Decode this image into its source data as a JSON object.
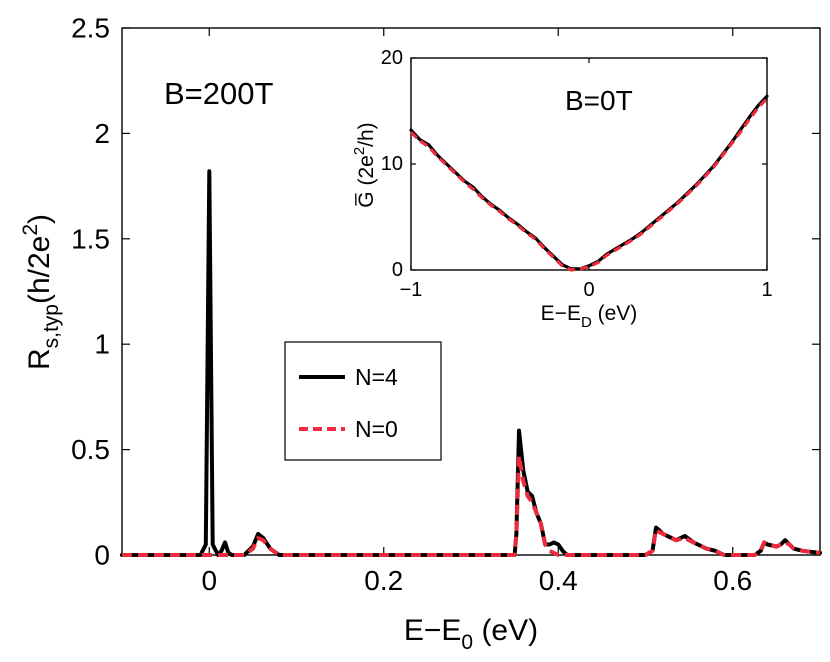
{
  "chart_data": [
    {
      "type": "line",
      "role": "main",
      "xlabel": "E−E",
      "xlabel_sub": "0",
      "xlabel_unit": " (eV)",
      "ylabel": "R",
      "ylabel_sub": "s,typ",
      "ylabel_unit": "(h/2e",
      "ylabel_sup": "2",
      "ylabel_close": ")",
      "xlim": [
        -0.1,
        0.7
      ],
      "ylim": [
        0,
        2.5
      ],
      "xticks": [
        0,
        0.2,
        0.4,
        0.6
      ],
      "xtick_labels": [
        "0",
        "0.2",
        "0.4",
        "0.6"
      ],
      "yticks": [
        0,
        0.5,
        1,
        1.5,
        2,
        2.5
      ],
      "ytick_labels": [
        "0",
        "0.5",
        "1",
        "1.5",
        "2",
        "2.5"
      ],
      "grid": false,
      "annotation": "B=200T",
      "legend": {
        "position": "center",
        "entries": [
          {
            "label": "N=4",
            "color": "#000000",
            "style": "solid"
          },
          {
            "label": "N=0",
            "color": "#ee2a3c",
            "style": "dashed"
          }
        ]
      },
      "series": [
        {
          "name": "N=4",
          "color": "#000000",
          "dash": "solid",
          "x": [
            -0.1,
            -0.01,
            -0.004,
            0.0,
            0.004,
            0.01,
            0.014,
            0.018,
            0.022,
            0.026,
            0.03,
            0.04,
            0.05,
            0.056,
            0.062,
            0.07,
            0.08,
            0.09,
            0.35,
            0.352,
            0.355,
            0.36,
            0.365,
            0.37,
            0.375,
            0.38,
            0.385,
            0.39,
            0.395,
            0.4,
            0.405,
            0.41,
            0.5,
            0.508,
            0.512,
            0.515,
            0.52,
            0.53,
            0.535,
            0.545,
            0.555,
            0.56,
            0.57,
            0.58,
            0.59,
            0.625,
            0.632,
            0.636,
            0.64,
            0.645,
            0.65,
            0.655,
            0.66,
            0.665,
            0.67,
            0.68,
            0.7
          ],
          "y": [
            0,
            0,
            0.05,
            1.82,
            0.05,
            0,
            0.02,
            0.06,
            0.01,
            0,
            0,
            0,
            0.04,
            0.1,
            0.08,
            0.03,
            0,
            0,
            0,
            0.1,
            0.59,
            0.4,
            0.3,
            0.28,
            0.2,
            0.15,
            0.05,
            0.05,
            0.06,
            0.05,
            0.02,
            0,
            0,
            0.02,
            0.13,
            0.12,
            0.1,
            0.08,
            0.07,
            0.09,
            0.06,
            0.05,
            0.03,
            0.02,
            0,
            0,
            0.02,
            0.06,
            0.05,
            0.045,
            0.04,
            0.05,
            0.07,
            0.05,
            0.03,
            0.02,
            0.01
          ]
        },
        {
          "name": "N=0",
          "color": "#ee2a3c",
          "dash": "dashed",
          "x": [
            -0.1,
            0.04,
            0.05,
            0.056,
            0.062,
            0.07,
            0.08,
            0.09,
            0.35,
            0.352,
            0.355,
            0.36,
            0.365,
            0.37,
            0.375,
            0.38,
            0.385,
            0.39,
            0.395,
            0.4,
            0.405,
            0.41,
            0.5,
            0.508,
            0.512,
            0.515,
            0.52,
            0.53,
            0.535,
            0.545,
            0.555,
            0.56,
            0.57,
            0.58,
            0.59,
            0.625,
            0.632,
            0.636,
            0.64,
            0.645,
            0.65,
            0.655,
            0.66,
            0.665,
            0.67,
            0.68,
            0.7
          ],
          "y": [
            0,
            0,
            0.03,
            0.08,
            0.07,
            0.03,
            0,
            0,
            0,
            0.1,
            0.47,
            0.35,
            0.28,
            0.25,
            0.2,
            0.15,
            0.05,
            0.02,
            0.01,
            0,
            0,
            0,
            0,
            0.02,
            0.12,
            0.11,
            0.1,
            0.08,
            0.07,
            0.08,
            0.06,
            0.05,
            0.03,
            0.02,
            0,
            0,
            0.02,
            0.06,
            0.05,
            0.045,
            0.04,
            0.05,
            0.06,
            0.05,
            0.03,
            0.02,
            0.01
          ]
        }
      ]
    },
    {
      "type": "line",
      "role": "inset",
      "xlabel": "E−E",
      "xlabel_sub": "D",
      "xlabel_unit": " (eV)",
      "ylabel": "G̅ (2e",
      "ylabel_sup": "2",
      "ylabel_close": "/h)",
      "xlim": [
        -1,
        1
      ],
      "ylim": [
        0,
        20
      ],
      "xticks": [
        -1,
        0,
        1
      ],
      "xtick_labels": [
        "−1",
        "0",
        "1"
      ],
      "yticks": [
        0,
        10,
        20
      ],
      "ytick_labels": [
        "0",
        "10",
        "20"
      ],
      "grid": false,
      "annotation": "B=0T",
      "series": [
        {
          "name": "N=4",
          "color": "#000000",
          "dash": "solid",
          "x": [
            -1.0,
            -0.95,
            -0.9,
            -0.85,
            -0.8,
            -0.75,
            -0.7,
            -0.65,
            -0.6,
            -0.55,
            -0.5,
            -0.45,
            -0.4,
            -0.35,
            -0.3,
            -0.25,
            -0.2,
            -0.15,
            -0.1,
            -0.05,
            0.0,
            0.05,
            0.1,
            0.15,
            0.2,
            0.25,
            0.3,
            0.35,
            0.4,
            0.45,
            0.5,
            0.55,
            0.6,
            0.65,
            0.7,
            0.75,
            0.8,
            0.85,
            0.9,
            0.95,
            1.0
          ],
          "y": [
            13.2,
            12.3,
            11.8,
            10.8,
            10.0,
            9.2,
            8.4,
            7.8,
            6.9,
            6.2,
            5.6,
            4.9,
            4.3,
            3.6,
            3.0,
            2.1,
            1.3,
            0.5,
            0.1,
            0.1,
            0.4,
            0.8,
            1.5,
            2.0,
            2.5,
            3.0,
            3.6,
            4.3,
            5.0,
            5.7,
            6.4,
            7.2,
            8.0,
            8.9,
            9.8,
            10.9,
            12.0,
            13.2,
            14.4,
            15.5,
            16.4
          ]
        },
        {
          "name": "N=0",
          "color": "#ee2a3c",
          "dash": "dashed",
          "x": [
            -1.0,
            -0.95,
            -0.9,
            -0.85,
            -0.8,
            -0.75,
            -0.7,
            -0.65,
            -0.6,
            -0.55,
            -0.5,
            -0.45,
            -0.4,
            -0.35,
            -0.3,
            -0.25,
            -0.2,
            -0.15,
            -0.1,
            -0.05,
            0.0,
            0.05,
            0.1,
            0.15,
            0.2,
            0.25,
            0.3,
            0.35,
            0.4,
            0.45,
            0.5,
            0.55,
            0.6,
            0.65,
            0.7,
            0.75,
            0.8,
            0.85,
            0.9,
            0.95,
            1.0
          ],
          "y": [
            13.0,
            12.2,
            11.6,
            10.7,
            9.9,
            9.1,
            8.3,
            7.6,
            6.8,
            6.1,
            5.5,
            4.8,
            4.2,
            3.5,
            2.9,
            2.0,
            1.2,
            0.4,
            0.0,
            0.1,
            0.3,
            0.7,
            1.4,
            1.9,
            2.4,
            2.9,
            3.5,
            4.2,
            4.9,
            5.6,
            6.3,
            7.1,
            7.9,
            8.8,
            9.7,
            10.8,
            11.9,
            13.0,
            14.2,
            15.3,
            16.2
          ]
        }
      ]
    }
  ]
}
